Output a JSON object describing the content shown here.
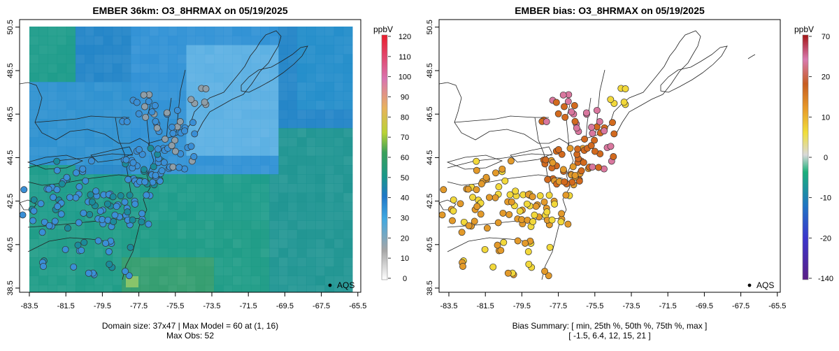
{
  "colors": {
    "conc_scale": [
      "#ffffff",
      "#a6a6a6",
      "#3fa9e2",
      "#1f77c8",
      "#19978a",
      "#3aa05a",
      "#b9d234",
      "#e8b35b",
      "#d974b0",
      "#ea1c2c"
    ],
    "bias_scale": [
      "#5a1e86",
      "#3b35cc",
      "#1f74c4",
      "#1ab07a",
      "#d9d9d9",
      "#f0df3a",
      "#e89a28",
      "#c75d21",
      "#d97ab0",
      "#a41414"
    ],
    "grid_base": "#1f86c8",
    "station_low": "#8f9ea8",
    "station_mid": "#3a8fd6",
    "station_high": "#1b8a9a",
    "bias_low": "#f2d83a",
    "bias_mid": "#e39a2a",
    "bias_high": "#d26a1e",
    "bias_pink": "#d9779e",
    "coast": "#222222"
  },
  "left_panel": {
    "title": "EMBER 36km: O3_8HRMAX on 05/19/2025",
    "unit": "ppbV",
    "x_ticks": [
      "-83.5",
      "-81.5",
      "-79.5",
      "-77.5",
      "-75.5",
      "-73.5",
      "-71.5",
      "-69.5",
      "-67.5",
      "-65.5"
    ],
    "y_ticks": [
      "38.5",
      "40.5",
      "42.5",
      "44.5",
      "46.5",
      "48.5",
      "50.5"
    ],
    "legend_ticks": [
      "0",
      "10",
      "20",
      "30",
      "40",
      "50",
      "60",
      "70",
      "80",
      "90",
      "100",
      "110",
      "120"
    ],
    "obs_label": "AQS",
    "footer_line1": "Domain size: 37x47 | Max Model = 60 at (1, 16)",
    "footer_line2": "Max Obs: 52"
  },
  "right_panel": {
    "title": "EMBER bias: O3_8HRMAX on 05/19/2025",
    "unit": "ppbV",
    "x_ticks": [
      "-83.5",
      "-81.5",
      "-79.5",
      "-77.5",
      "-75.5",
      "-73.5",
      "-71.5",
      "-69.5",
      "-67.5",
      "-65.5"
    ],
    "y_ticks": [
      "38.5",
      "40.5",
      "42.5",
      "44.5",
      "46.5",
      "48.5",
      "50.5"
    ],
    "legend_ticks": [
      "70",
      "20",
      "10",
      "0",
      "-10",
      "-20",
      "-140"
    ],
    "obs_label": "AQS",
    "footer_line1": "Bias Summary: [ min, 25th %, 50th %, 75th %, max ]",
    "footer_line2": "[ -1.5,   6.4,   12,   15,   21 ]"
  }
}
